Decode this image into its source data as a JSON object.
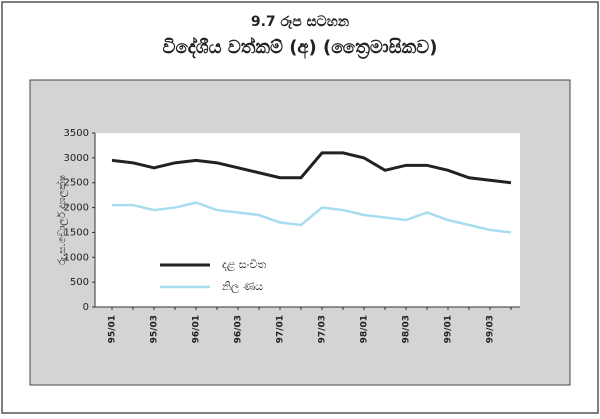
{
  "chart_data": {
    "type": "line",
    "title": "9.7 රූප සටහන",
    "subtitle": "විදේශීය වත්කම් (අ) (ත්‍රෛමාසිකව)",
    "y_label": "රු.ස.ඩොලර් දශලක්ෂ",
    "categories": [
      "95/01",
      null,
      "95/03",
      null,
      "96/01",
      null,
      "96/03",
      null,
      "97/01",
      null,
      "97/03",
      null,
      "98/01",
      null,
      "98/03",
      null,
      "99/01",
      null,
      "99/03",
      null
    ],
    "series": [
      {
        "name": "දළ සංචිත",
        "color": "#222222",
        "values": [
          2950,
          2900,
          2800,
          2900,
          2950,
          2900,
          2800,
          2700,
          2600,
          2600,
          3100,
          3100,
          3000,
          2750,
          2850,
          2850,
          2750,
          2600,
          2550,
          2500
        ]
      },
      {
        "name": "නිල ණය",
        "color": "#a8dcef",
        "values": [
          2050,
          2050,
          1950,
          2000,
          2100,
          1950,
          1900,
          1850,
          1700,
          1650,
          2000,
          1950,
          1850,
          1800,
          1750,
          1900,
          1750,
          1650,
          1550,
          1500
        ]
      }
    ],
    "ylim": [
      0,
      3500
    ],
    "yticks": [
      0,
      500,
      1000,
      1500,
      2000,
      2500,
      3000,
      3500
    ],
    "grid": false,
    "legend": "lower left"
  }
}
